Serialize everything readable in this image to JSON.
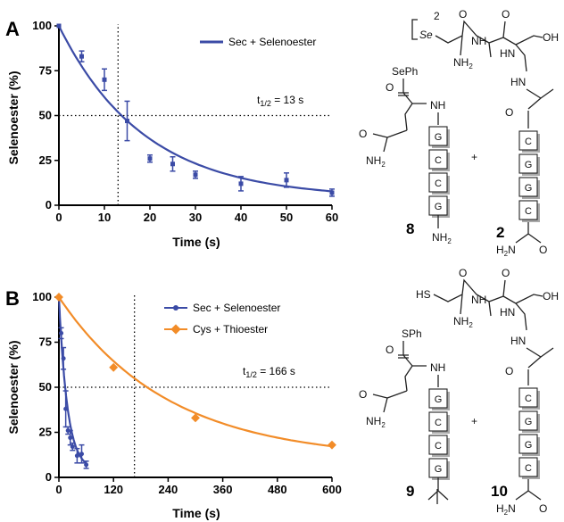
{
  "chart_data": [
    {
      "panel": "A",
      "type": "scatter",
      "xlabel": "Time (s)",
      "ylabel": "Selenoester (%)",
      "xlim": [
        0,
        60
      ],
      "ylim": [
        0,
        100
      ],
      "xticks": [
        0,
        10,
        20,
        30,
        40,
        50,
        60
      ],
      "yticks": [
        0,
        25,
        50,
        75,
        100
      ],
      "grid": false,
      "legend_position": "top-right",
      "half_life_label": "t1/2 = 13 s",
      "half_life": 13,
      "series": [
        {
          "name": "Sec + Selenoester",
          "color": "#3b4ba6",
          "marker": "square",
          "fit_curve": true,
          "x": [
            0,
            5,
            10,
            15,
            20,
            25,
            30,
            40,
            50,
            60
          ],
          "y": [
            100,
            83,
            70,
            47,
            26,
            23,
            17,
            12,
            14,
            7
          ],
          "error": [
            0,
            3,
            6,
            11,
            2,
            4,
            2,
            4,
            4,
            2
          ]
        }
      ]
    },
    {
      "panel": "B",
      "type": "line",
      "xlabel": "Time (s)",
      "ylabel": "Selenoester (%)",
      "xlim": [
        0,
        600
      ],
      "ylim": [
        0,
        100
      ],
      "xticks": [
        0,
        120,
        240,
        360,
        480,
        600
      ],
      "yticks": [
        0,
        25,
        50,
        75,
        100
      ],
      "grid": false,
      "legend_position": "top-right",
      "half_life_label": "t1/2 = 166 s",
      "half_life": 166,
      "series": [
        {
          "name": "Sec + Selenoester",
          "color": "#3b4ba6",
          "marker": "circle",
          "fit_curve": true,
          "x": [
            0,
            5,
            10,
            15,
            20,
            25,
            30,
            40,
            50,
            60
          ],
          "y": [
            100,
            80,
            66,
            38,
            26,
            22,
            17,
            12,
            13,
            7
          ],
          "error": [
            0,
            3,
            6,
            10,
            2,
            4,
            2,
            4,
            5,
            2
          ]
        },
        {
          "name": "Cys + Thioester",
          "color": "#f28c28",
          "marker": "diamond",
          "fit_curve": true,
          "x": [
            0,
            120,
            300,
            600
          ],
          "y": [
            100,
            61,
            33,
            18
          ],
          "error": [
            0,
            0,
            0,
            0
          ]
        }
      ]
    }
  ],
  "structures": {
    "sePh_label": "SePh",
    "sPh_label": "SPh",
    "se_label": "Se",
    "sh_label": "HS",
    "dimer_sub": "2",
    "nh_label": "NH",
    "hn_label": "HN",
    "nh2_label": "NH2",
    "h2n_label": "H2N",
    "o_label": "O",
    "oh_label": "OH",
    "plus_sign": "+",
    "residues_8": [
      "G",
      "C",
      "C",
      "G"
    ],
    "residues_9": [
      "G",
      "C",
      "C",
      "G"
    ],
    "residues_2": [
      "C",
      "G",
      "G",
      "C"
    ],
    "residues_10": [
      "C",
      "G",
      "G",
      "C"
    ],
    "compound_8": "8",
    "compound_2": "2",
    "compound_9": "9",
    "compound_10": "10"
  }
}
